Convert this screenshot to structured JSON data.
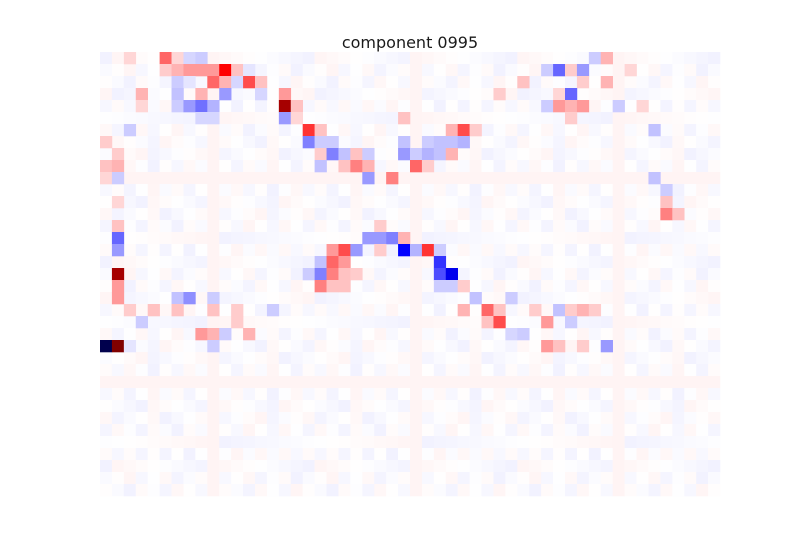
{
  "chart_data": {
    "type": "heatmap",
    "title": "component 0995",
    "xlabel": "",
    "ylabel": "",
    "rows": 37,
    "cols": 52,
    "colormap": "seismic",
    "vmin": -1,
    "vmax": 1,
    "axes_visible": false,
    "grid": false,
    "colors": {
      "negative_extreme": "#00004c",
      "negative": "#3333ff",
      "neutral": "#ffffff",
      "positive": "#ff3333",
      "positive_extreme": "#800000"
    },
    "cells": [
      {
        "r": 0,
        "c": 5,
        "v": 0.3
      },
      {
        "r": 0,
        "c": 6,
        "v": 0.08
      },
      {
        "r": 0,
        "c": 7,
        "v": -0.08
      },
      {
        "r": 0,
        "c": 8,
        "v": -0.1
      },
      {
        "r": 0,
        "c": 41,
        "v": -0.1
      },
      {
        "r": 0,
        "c": 42,
        "v": 0.15
      },
      {
        "r": 0,
        "c": 2,
        "v": 0.08
      },
      {
        "r": 1,
        "c": 5,
        "v": 0.1
      },
      {
        "r": 1,
        "c": 6,
        "v": 0.15
      },
      {
        "r": 1,
        "c": 7,
        "v": 0.2
      },
      {
        "r": 1,
        "c": 8,
        "v": 0.2
      },
      {
        "r": 1,
        "c": 9,
        "v": 0.2
      },
      {
        "r": 1,
        "c": 10,
        "v": 0.5
      },
      {
        "r": 1,
        "c": 11,
        "v": 0.12
      },
      {
        "r": 1,
        "c": 12,
        "v": -0.05
      },
      {
        "r": 1,
        "c": 37,
        "v": -0.1
      },
      {
        "r": 1,
        "c": 38,
        "v": -0.3
      },
      {
        "r": 1,
        "c": 39,
        "v": 0.1
      },
      {
        "r": 1,
        "c": 40,
        "v": -0.2
      },
      {
        "r": 1,
        "c": 44,
        "v": 0.08
      },
      {
        "r": 2,
        "c": 6,
        "v": -0.1
      },
      {
        "r": 2,
        "c": 7,
        "v": -0.05
      },
      {
        "r": 2,
        "c": 9,
        "v": 0.3
      },
      {
        "r": 2,
        "c": 10,
        "v": 0.15
      },
      {
        "r": 2,
        "c": 11,
        "v": -0.08
      },
      {
        "r": 2,
        "c": 12,
        "v": 0.35
      },
      {
        "r": 2,
        "c": 13,
        "v": 0.12
      },
      {
        "r": 2,
        "c": 35,
        "v": 0.12
      },
      {
        "r": 2,
        "c": 40,
        "v": 0.1
      },
      {
        "r": 2,
        "c": 42,
        "v": 0.15
      },
      {
        "r": 3,
        "c": 3,
        "v": 0.15
      },
      {
        "r": 3,
        "c": 6,
        "v": -0.12
      },
      {
        "r": 3,
        "c": 8,
        "v": 0.15
      },
      {
        "r": 3,
        "c": 10,
        "v": -0.2
      },
      {
        "r": 3,
        "c": 13,
        "v": -0.08
      },
      {
        "r": 3,
        "c": 15,
        "v": 0.2
      },
      {
        "r": 3,
        "c": 33,
        "v": 0.1
      },
      {
        "r": 3,
        "c": 38,
        "v": 0.08
      },
      {
        "r": 3,
        "c": 39,
        "v": -0.3
      },
      {
        "r": 4,
        "c": 3,
        "v": 0.08
      },
      {
        "r": 4,
        "c": 6,
        "v": -0.1
      },
      {
        "r": 4,
        "c": 7,
        "v": -0.2
      },
      {
        "r": 4,
        "c": 8,
        "v": -0.28
      },
      {
        "r": 4,
        "c": 9,
        "v": -0.15
      },
      {
        "r": 4,
        "c": 15,
        "v": 0.85
      },
      {
        "r": 4,
        "c": 16,
        "v": 0.12
      },
      {
        "r": 4,
        "c": 37,
        "v": -0.1
      },
      {
        "r": 4,
        "c": 38,
        "v": 0.2
      },
      {
        "r": 4,
        "c": 39,
        "v": 0.15
      },
      {
        "r": 4,
        "c": 40,
        "v": 0.2
      },
      {
        "r": 4,
        "c": 43,
        "v": -0.1
      },
      {
        "r": 4,
        "c": 45,
        "v": 0.08
      },
      {
        "r": 5,
        "c": 8,
        "v": -0.08
      },
      {
        "r": 5,
        "c": 9,
        "v": -0.08
      },
      {
        "r": 5,
        "c": 15,
        "v": -0.2
      },
      {
        "r": 5,
        "c": 16,
        "v": 0.08
      },
      {
        "r": 5,
        "c": 25,
        "v": 0.12
      },
      {
        "r": 5,
        "c": 39,
        "v": 0.1
      },
      {
        "r": 6,
        "c": 2,
        "v": -0.1
      },
      {
        "r": 6,
        "c": 17,
        "v": 0.4
      },
      {
        "r": 6,
        "c": 18,
        "v": 0.12
      },
      {
        "r": 6,
        "c": 29,
        "v": 0.15
      },
      {
        "r": 6,
        "c": 30,
        "v": 0.35
      },
      {
        "r": 6,
        "c": 31,
        "v": 0.1
      },
      {
        "r": 6,
        "c": 46,
        "v": -0.12
      },
      {
        "r": 7,
        "c": 0,
        "v": 0.1
      },
      {
        "r": 7,
        "c": 17,
        "v": -0.25
      },
      {
        "r": 7,
        "c": 18,
        "v": -0.1
      },
      {
        "r": 7,
        "c": 19,
        "v": -0.1
      },
      {
        "r": 7,
        "c": 25,
        "v": -0.12
      },
      {
        "r": 7,
        "c": 27,
        "v": -0.1
      },
      {
        "r": 7,
        "c": 28,
        "v": -0.12
      },
      {
        "r": 7,
        "c": 29,
        "v": -0.12
      },
      {
        "r": 7,
        "c": 30,
        "v": -0.15
      },
      {
        "r": 8,
        "c": 1,
        "v": 0.1
      },
      {
        "r": 8,
        "c": 18,
        "v": 0.1
      },
      {
        "r": 8,
        "c": 19,
        "v": -0.25
      },
      {
        "r": 8,
        "c": 20,
        "v": -0.12
      },
      {
        "r": 8,
        "c": 21,
        "v": 0.12
      },
      {
        "r": 8,
        "c": 22,
        "v": -0.1
      },
      {
        "r": 8,
        "c": 25,
        "v": -0.2
      },
      {
        "r": 8,
        "c": 26,
        "v": -0.1
      },
      {
        "r": 8,
        "c": 27,
        "v": -0.15
      },
      {
        "r": 8,
        "c": 28,
        "v": -0.12
      },
      {
        "r": 8,
        "c": 29,
        "v": 0.15
      },
      {
        "r": 9,
        "c": 0,
        "v": 0.12
      },
      {
        "r": 9,
        "c": 1,
        "v": 0.15
      },
      {
        "r": 9,
        "c": 18,
        "v": -0.12
      },
      {
        "r": 9,
        "c": 20,
        "v": 0.12
      },
      {
        "r": 9,
        "c": 21,
        "v": 0.25
      },
      {
        "r": 9,
        "c": 22,
        "v": 0.15
      },
      {
        "r": 9,
        "c": 26,
        "v": 0.3
      },
      {
        "r": 9,
        "c": 27,
        "v": 0.1
      },
      {
        "r": 10,
        "c": 0,
        "v": 0.08
      },
      {
        "r": 10,
        "c": 1,
        "v": -0.1
      },
      {
        "r": 10,
        "c": 22,
        "v": -0.2
      },
      {
        "r": 10,
        "c": 24,
        "v": 0.25
      },
      {
        "r": 10,
        "c": 46,
        "v": -0.12
      },
      {
        "r": 11,
        "c": 47,
        "v": -0.1
      },
      {
        "r": 12,
        "c": 1,
        "v": 0.08
      },
      {
        "r": 12,
        "c": 47,
        "v": 0.12
      },
      {
        "r": 13,
        "c": 47,
        "v": 0.25
      },
      {
        "r": 13,
        "c": 48,
        "v": 0.12
      },
      {
        "r": 14,
        "c": 1,
        "v": 0.12
      },
      {
        "r": 14,
        "c": 23,
        "v": 0.1
      },
      {
        "r": 15,
        "c": 1,
        "v": -0.3
      },
      {
        "r": 15,
        "c": 22,
        "v": -0.2
      },
      {
        "r": 15,
        "c": 23,
        "v": -0.2
      },
      {
        "r": 15,
        "c": 24,
        "v": -0.25
      },
      {
        "r": 15,
        "c": 25,
        "v": 0.15
      },
      {
        "r": 16,
        "c": 1,
        "v": -0.2
      },
      {
        "r": 16,
        "c": 19,
        "v": 0.2
      },
      {
        "r": 16,
        "c": 20,
        "v": 0.35
      },
      {
        "r": 16,
        "c": 21,
        "v": -0.2
      },
      {
        "r": 16,
        "c": 23,
        "v": 0.1
      },
      {
        "r": 16,
        "c": 25,
        "v": -0.5
      },
      {
        "r": 16,
        "c": 26,
        "v": -0.15
      },
      {
        "r": 16,
        "c": 27,
        "v": 0.4
      },
      {
        "r": 16,
        "c": 28,
        "v": -0.1
      },
      {
        "r": 17,
        "c": 18,
        "v": -0.12
      },
      {
        "r": 17,
        "c": 19,
        "v": 0.3
      },
      {
        "r": 17,
        "c": 20,
        "v": 0.2
      },
      {
        "r": 17,
        "c": 28,
        "v": -0.4
      },
      {
        "r": 18,
        "c": 1,
        "v": 0.85
      },
      {
        "r": 18,
        "c": 17,
        "v": -0.1
      },
      {
        "r": 18,
        "c": 18,
        "v": -0.25
      },
      {
        "r": 18,
        "c": 19,
        "v": 0.25
      },
      {
        "r": 18,
        "c": 20,
        "v": 0.12
      },
      {
        "r": 18,
        "c": 21,
        "v": 0.1
      },
      {
        "r": 18,
        "c": 28,
        "v": -0.35
      },
      {
        "r": 18,
        "c": 29,
        "v": -0.55
      },
      {
        "r": 19,
        "c": 1,
        "v": 0.2
      },
      {
        "r": 19,
        "c": 18,
        "v": 0.25
      },
      {
        "r": 19,
        "c": 19,
        "v": 0.12
      },
      {
        "r": 19,
        "c": 20,
        "v": 0.12
      },
      {
        "r": 19,
        "c": 28,
        "v": -0.1
      },
      {
        "r": 19,
        "c": 29,
        "v": -0.1
      },
      {
        "r": 19,
        "c": 30,
        "v": 0.1
      },
      {
        "r": 20,
        "c": 1,
        "v": 0.2
      },
      {
        "r": 20,
        "c": 6,
        "v": -0.12
      },
      {
        "r": 20,
        "c": 7,
        "v": -0.22
      },
      {
        "r": 20,
        "c": 9,
        "v": -0.1
      },
      {
        "r": 20,
        "c": 31,
        "v": -0.12
      },
      {
        "r": 20,
        "c": 34,
        "v": -0.1
      },
      {
        "r": 21,
        "c": 2,
        "v": 0.1
      },
      {
        "r": 21,
        "c": 4,
        "v": 0.12
      },
      {
        "r": 21,
        "c": 6,
        "v": 0.12
      },
      {
        "r": 21,
        "c": 9,
        "v": 0.12
      },
      {
        "r": 21,
        "c": 11,
        "v": 0.1
      },
      {
        "r": 21,
        "c": 14,
        "v": -0.1
      },
      {
        "r": 21,
        "c": 30,
        "v": 0.15
      },
      {
        "r": 21,
        "c": 32,
        "v": 0.3
      },
      {
        "r": 21,
        "c": 33,
        "v": 0.12
      },
      {
        "r": 21,
        "c": 36,
        "v": 0.1
      },
      {
        "r": 21,
        "c": 38,
        "v": -0.12
      },
      {
        "r": 21,
        "c": 39,
        "v": 0.1
      },
      {
        "r": 21,
        "c": 40,
        "v": 0.15
      },
      {
        "r": 21,
        "c": 41,
        "v": 0.1
      },
      {
        "r": 22,
        "c": 3,
        "v": -0.1
      },
      {
        "r": 22,
        "c": 11,
        "v": 0.1
      },
      {
        "r": 22,
        "c": 32,
        "v": 0.12
      },
      {
        "r": 22,
        "c": 33,
        "v": 0.35
      },
      {
        "r": 22,
        "c": 37,
        "v": 0.2
      },
      {
        "r": 22,
        "c": 39,
        "v": -0.1
      },
      {
        "r": 23,
        "c": 8,
        "v": 0.2
      },
      {
        "r": 23,
        "c": 9,
        "v": 0.15
      },
      {
        "r": 23,
        "c": 10,
        "v": -0.1
      },
      {
        "r": 23,
        "c": 12,
        "v": 0.15
      },
      {
        "r": 23,
        "c": 34,
        "v": -0.08
      },
      {
        "r": 23,
        "c": 35,
        "v": -0.1
      },
      {
        "r": 24,
        "c": 0,
        "v": -1.0
      },
      {
        "r": 24,
        "c": 1,
        "v": 1.0
      },
      {
        "r": 24,
        "c": 2,
        "v": -0.05
      },
      {
        "r": 24,
        "c": 9,
        "v": -0.1
      },
      {
        "r": 24,
        "c": 37,
        "v": 0.2
      },
      {
        "r": 24,
        "c": 38,
        "v": 0.12
      },
      {
        "r": 24,
        "c": 40,
        "v": 0.1
      },
      {
        "r": 24,
        "c": 42,
        "v": -0.2
      }
    ]
  }
}
